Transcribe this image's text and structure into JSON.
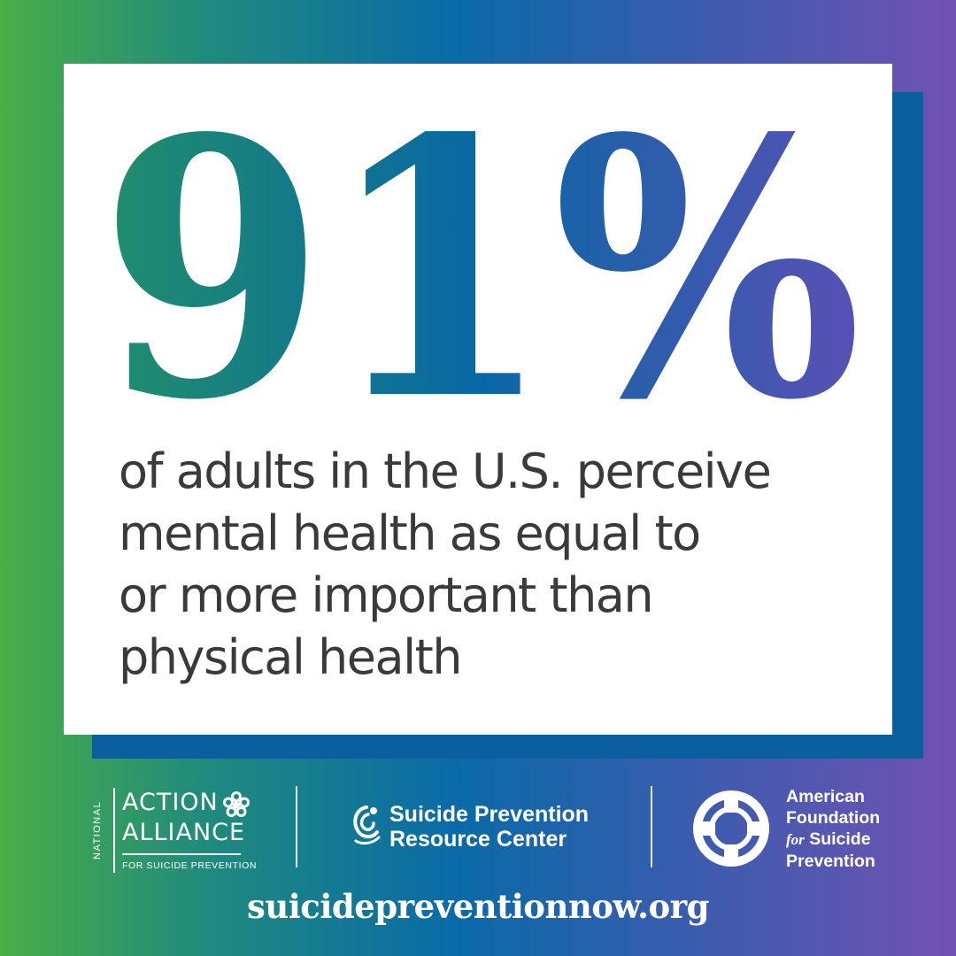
{
  "stat": {
    "value": "91%",
    "gradient": [
      "#218e6b",
      "#0868a4",
      "#5a50b5"
    ]
  },
  "description": [
    "of adults in the U.S. perceive",
    "mental health as equal to",
    "or more important than",
    "physical health"
  ],
  "logos": {
    "naa": {
      "vertical": "NATIONAL",
      "line1": "ACTION",
      "line2": "ALLIANCE",
      "sub": "FOR SUICIDE PREVENTION",
      "icon": "star-flower-icon"
    },
    "sprc": {
      "line1": "Suicide Prevention",
      "line2": "Resource Center",
      "icon": "sprc-swirl-icon"
    },
    "afsp": {
      "line1": "American",
      "line2": "Foundation",
      "for": "for",
      "line3": "Suicide",
      "line4": "Prevention",
      "icon": "life-ring-icon"
    }
  },
  "url": "suicidepreventionnow.org",
  "colors": {
    "text_dark": "#3a3a3c",
    "card": "#ffffff",
    "shadow": "#0b5f9f"
  }
}
